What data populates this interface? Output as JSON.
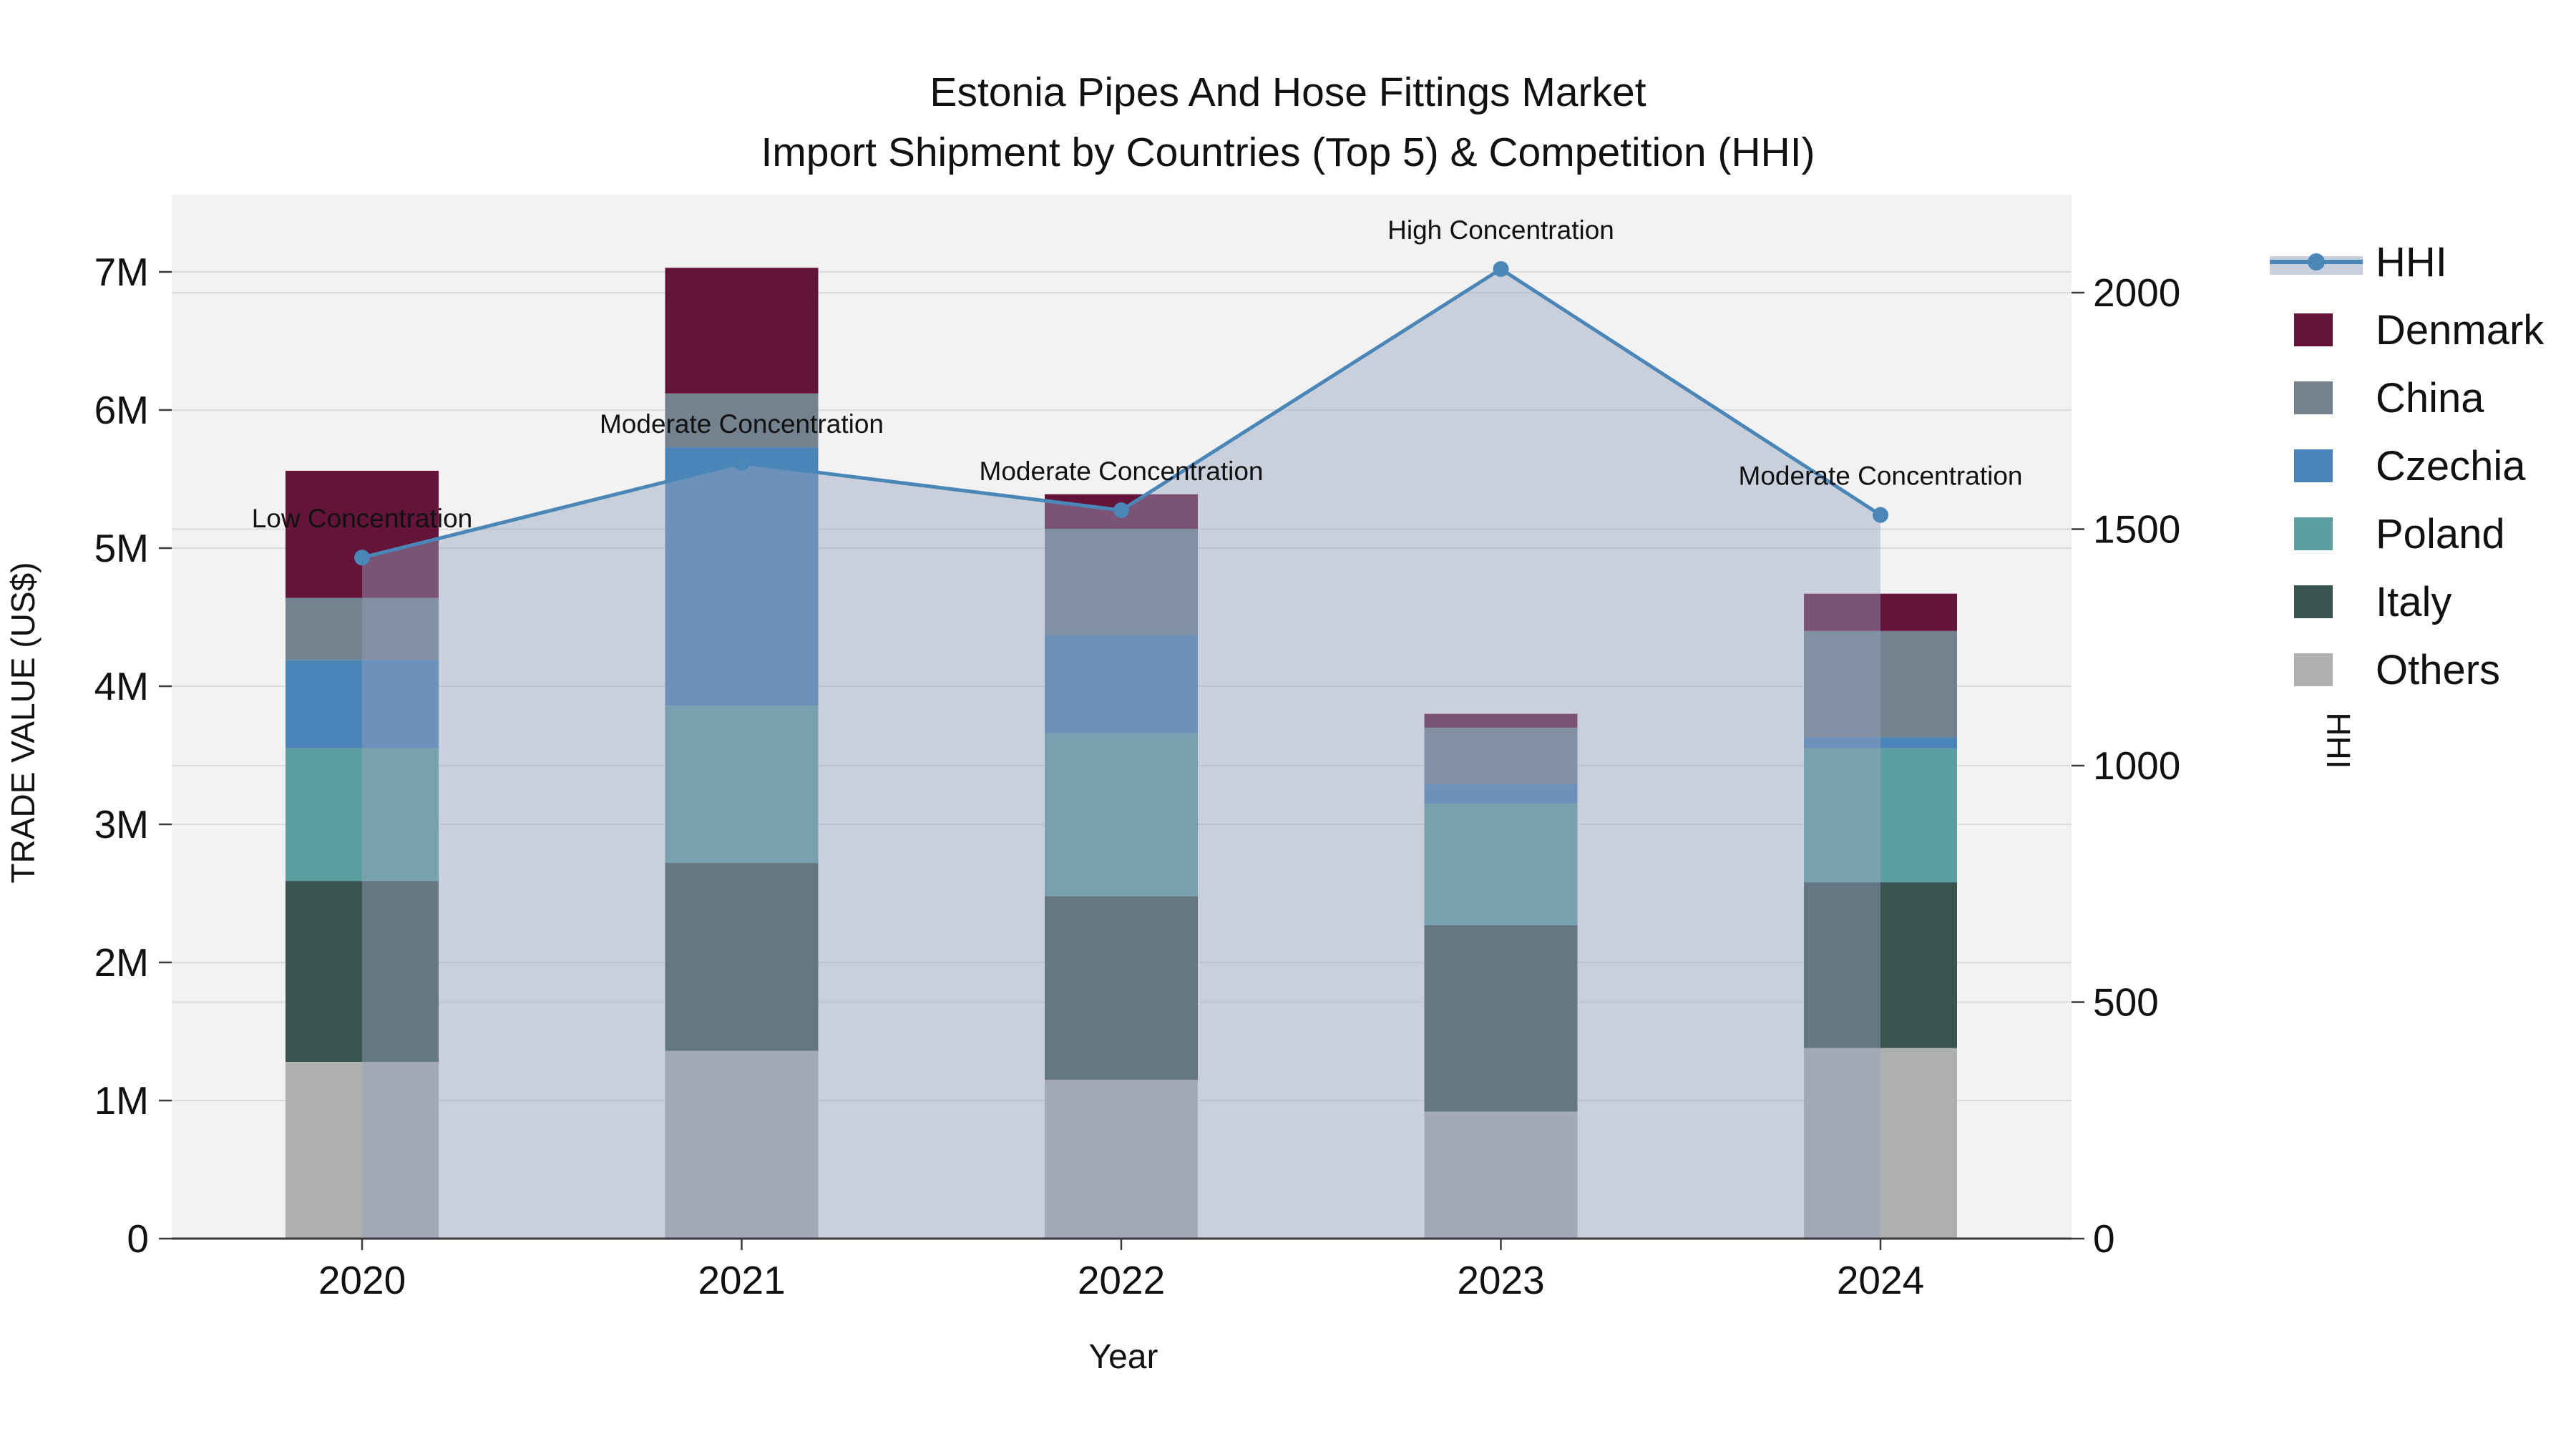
{
  "title": {
    "line1": "Estonia Pipes And Hose Fittings Market",
    "line2": "Import Shipment by Countries (Top 5) & Competition (HHI)"
  },
  "axes": {
    "x": {
      "label": "Year",
      "categories": [
        "2020",
        "2021",
        "2022",
        "2023",
        "2024"
      ]
    },
    "y_left": {
      "label": "TRADE VALUE (US$)",
      "ticks": [
        "0",
        "1M",
        "2M",
        "3M",
        "4M",
        "5M",
        "6M",
        "7M"
      ],
      "range_usd": [
        0,
        7000000
      ]
    },
    "y_right": {
      "label": "HHI",
      "ticks": [
        "0",
        "500",
        "1000",
        "1500",
        "2000"
      ],
      "range": [
        0,
        2000
      ]
    }
  },
  "legend": {
    "items": [
      {
        "label": "HHI",
        "kind": "line",
        "color": "#4a86b8",
        "band_color": "#c9d0db"
      },
      {
        "label": "Denmark",
        "kind": "swatch",
        "color": "#641339"
      },
      {
        "label": "China",
        "kind": "swatch",
        "color": "#74828f"
      },
      {
        "label": "Czechia",
        "kind": "swatch",
        "color": "#4a84b8"
      },
      {
        "label": "Poland",
        "kind": "swatch",
        "color": "#5d9fa1"
      },
      {
        "label": "Italy",
        "kind": "swatch",
        "color": "#395450"
      },
      {
        "label": "Others",
        "kind": "swatch",
        "color": "#aeb0ae"
      }
    ]
  },
  "colors": {
    "plot_background": "#f2f2f2",
    "gridline": "#dcdcdc",
    "axis_line": "#3a3a3a",
    "hhi_line": "#4a86b8",
    "hhi_area_fill": "rgba(150,165,190,0.45)"
  },
  "chart_data": {
    "type": "bar+line",
    "x": [
      "2020",
      "2021",
      "2022",
      "2023",
      "2024"
    ],
    "stack_order_bottom_to_top": [
      "Others",
      "Italy",
      "Poland",
      "Czechia",
      "China",
      "Denmark"
    ],
    "bar_series_usd_millions": [
      {
        "name": "Others",
        "color": "#aeb0ae",
        "values": [
          1.28,
          1.36,
          1.15,
          0.92,
          1.38
        ]
      },
      {
        "name": "Italy",
        "color": "#395450",
        "values": [
          1.31,
          1.36,
          1.33,
          1.35,
          1.2
        ]
      },
      {
        "name": "Poland",
        "color": "#5d9fa1",
        "values": [
          0.96,
          1.14,
          1.18,
          0.88,
          0.97
        ]
      },
      {
        "name": "Czechia",
        "color": "#4a84b8",
        "values": [
          0.64,
          1.87,
          0.71,
          0.14,
          0.08
        ]
      },
      {
        "name": "China",
        "color": "#74828f",
        "values": [
          0.45,
          0.39,
          0.77,
          0.41,
          0.77
        ]
      },
      {
        "name": "Denmark",
        "color": "#641339",
        "values": [
          0.92,
          0.91,
          0.25,
          0.1,
          0.27
        ]
      }
    ],
    "bar_totals_usd_millions": [
      5.56,
      7.03,
      5.39,
      3.8,
      4.67
    ],
    "line_series": {
      "name": "HHI",
      "values": [
        1440,
        1640,
        1540,
        2050,
        1530
      ],
      "axis": "right"
    },
    "annotations": [
      {
        "x": "2020",
        "text": "Low Concentration"
      },
      {
        "x": "2021",
        "text": "Moderate Concentration"
      },
      {
        "x": "2022",
        "text": "Moderate Concentration"
      },
      {
        "x": "2023",
        "text": "High Concentration"
      },
      {
        "x": "2024",
        "text": "Moderate Concentration"
      }
    ],
    "layout_hints": {
      "grid": true,
      "legend_position": "right",
      "left_axis_ticks_usd": "1M steps",
      "right_axis_ticks": "500 steps"
    }
  }
}
